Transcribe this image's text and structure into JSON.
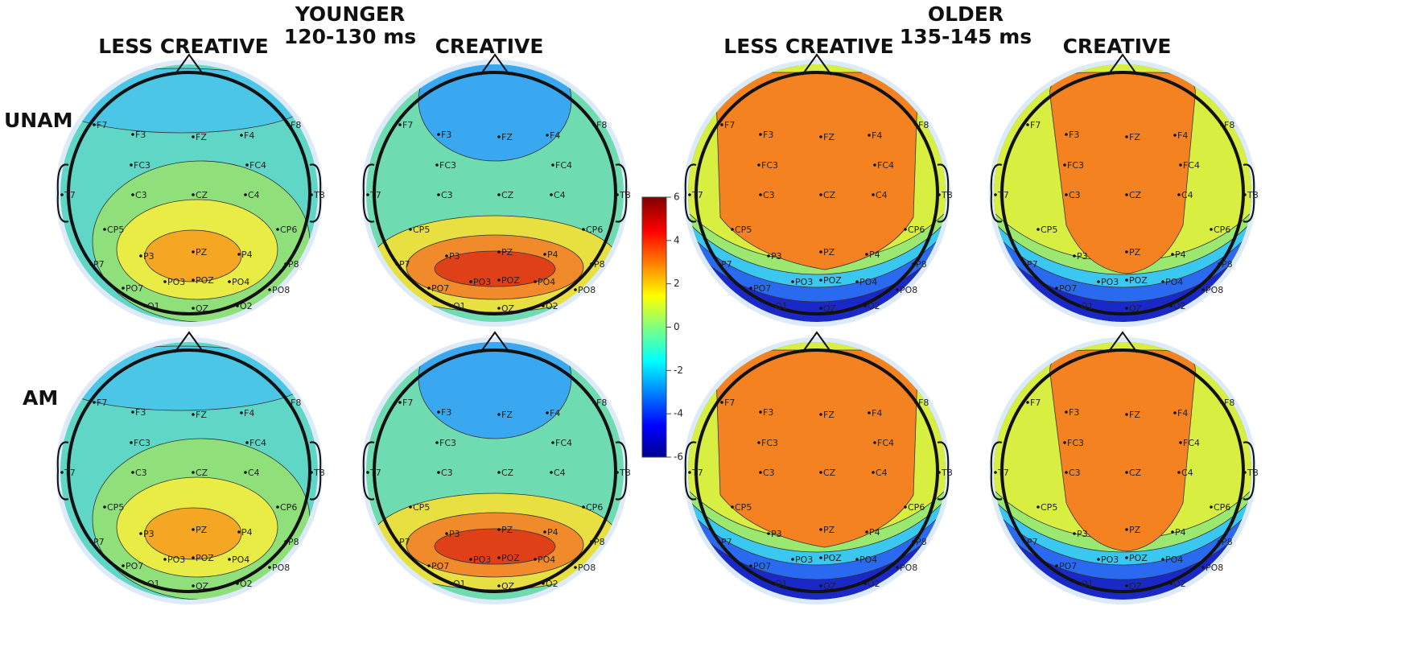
{
  "groups": [
    {
      "title": "YOUNGER",
      "window": "120-130 ms",
      "columns": [
        "LESS CREATIVE",
        "CREATIVE"
      ]
    },
    {
      "title": "OLDER",
      "window": "135-145 ms",
      "columns": [
        "LESS CREATIVE",
        "CREATIVE"
      ]
    }
  ],
  "rows": [
    "UNAM",
    "AM"
  ],
  "colorbar": {
    "ticks": [
      6,
      4,
      2,
      0,
      -2,
      -4,
      -6
    ]
  },
  "electrodes": [
    "F7",
    "F3",
    "FZ",
    "F4",
    "F8",
    "FC3",
    "FC4",
    "T7",
    "C3",
    "CZ",
    "C4",
    "T8",
    "CP5",
    "CP6",
    "P7",
    "P3",
    "PZ",
    "P4",
    "P8",
    "PO7",
    "PO3",
    "POZ",
    "PO4",
    "PO8",
    "O1",
    "OZ",
    "O2"
  ]
}
